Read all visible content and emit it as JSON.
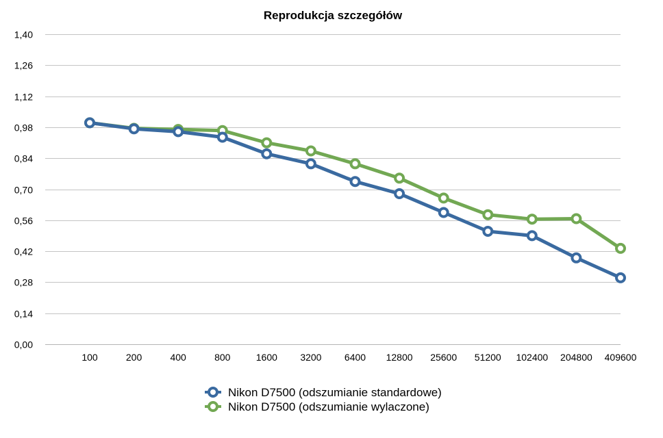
{
  "chart_data": {
    "type": "line",
    "title": "Reprodukcja szczegółów",
    "xlabel": "",
    "ylabel": "",
    "categories": [
      "100",
      "200",
      "400",
      "800",
      "1600",
      "3200",
      "6400",
      "12800",
      "25600",
      "51200",
      "102400",
      "204800",
      "409600"
    ],
    "yticks": [
      "0,00",
      "0,14",
      "0,28",
      "0,42",
      "0,56",
      "0,70",
      "0,84",
      "0,98",
      "1,12",
      "1,26",
      "1,40"
    ],
    "ylim": [
      0,
      1.4
    ],
    "grid": true,
    "legend_position": "bottom",
    "series": [
      {
        "name": "Nikon D7500 (odszumianie standardowe)",
        "color": "#3a6aa0",
        "values": [
          1.0,
          0.973,
          0.96,
          0.935,
          0.86,
          0.815,
          0.735,
          0.68,
          0.595,
          0.51,
          0.49,
          0.39,
          0.3
        ]
      },
      {
        "name": "Nikon D7500 (odszumianie wylaczone)",
        "color": "#72a853",
        "values": [
          1.0,
          0.975,
          0.97,
          0.965,
          0.91,
          0.873,
          0.815,
          0.75,
          0.66,
          0.585,
          0.565,
          0.567,
          0.433
        ]
      }
    ]
  }
}
